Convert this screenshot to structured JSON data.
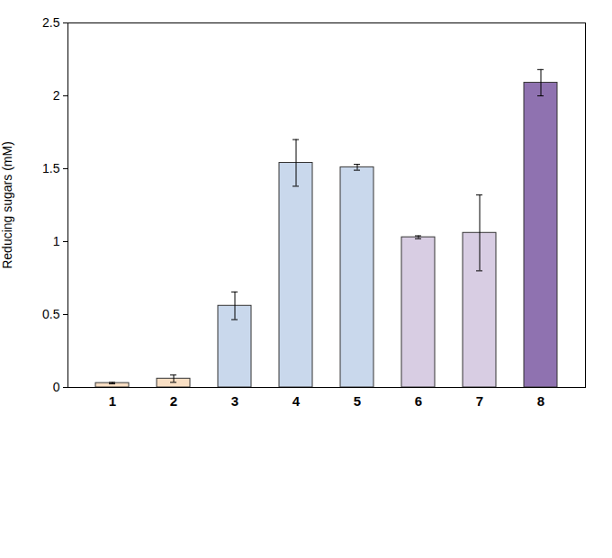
{
  "chart_data": {
    "type": "bar",
    "categories": [
      "1",
      "2",
      "3",
      "4",
      "5",
      "6",
      "7",
      "8"
    ],
    "values": [
      0.03,
      0.06,
      0.56,
      1.54,
      1.51,
      1.03,
      1.06,
      2.09
    ],
    "errors": [
      0.005,
      0.025,
      0.095,
      0.16,
      0.02,
      0.01,
      0.26,
      0.09
    ],
    "colors": [
      "#f9dfc4",
      "#f9dfc4",
      "#c9d8ec",
      "#c9d8ec",
      "#c9d8ec",
      "#d8cde3",
      "#d8cde3",
      "#8f72b0"
    ],
    "y_label": "Reducing sugars (mM)",
    "ylim": [
      0,
      2.5
    ],
    "yticks": [
      0,
      0.5,
      1,
      1.5,
      2,
      2.5
    ],
    "grid": false
  }
}
